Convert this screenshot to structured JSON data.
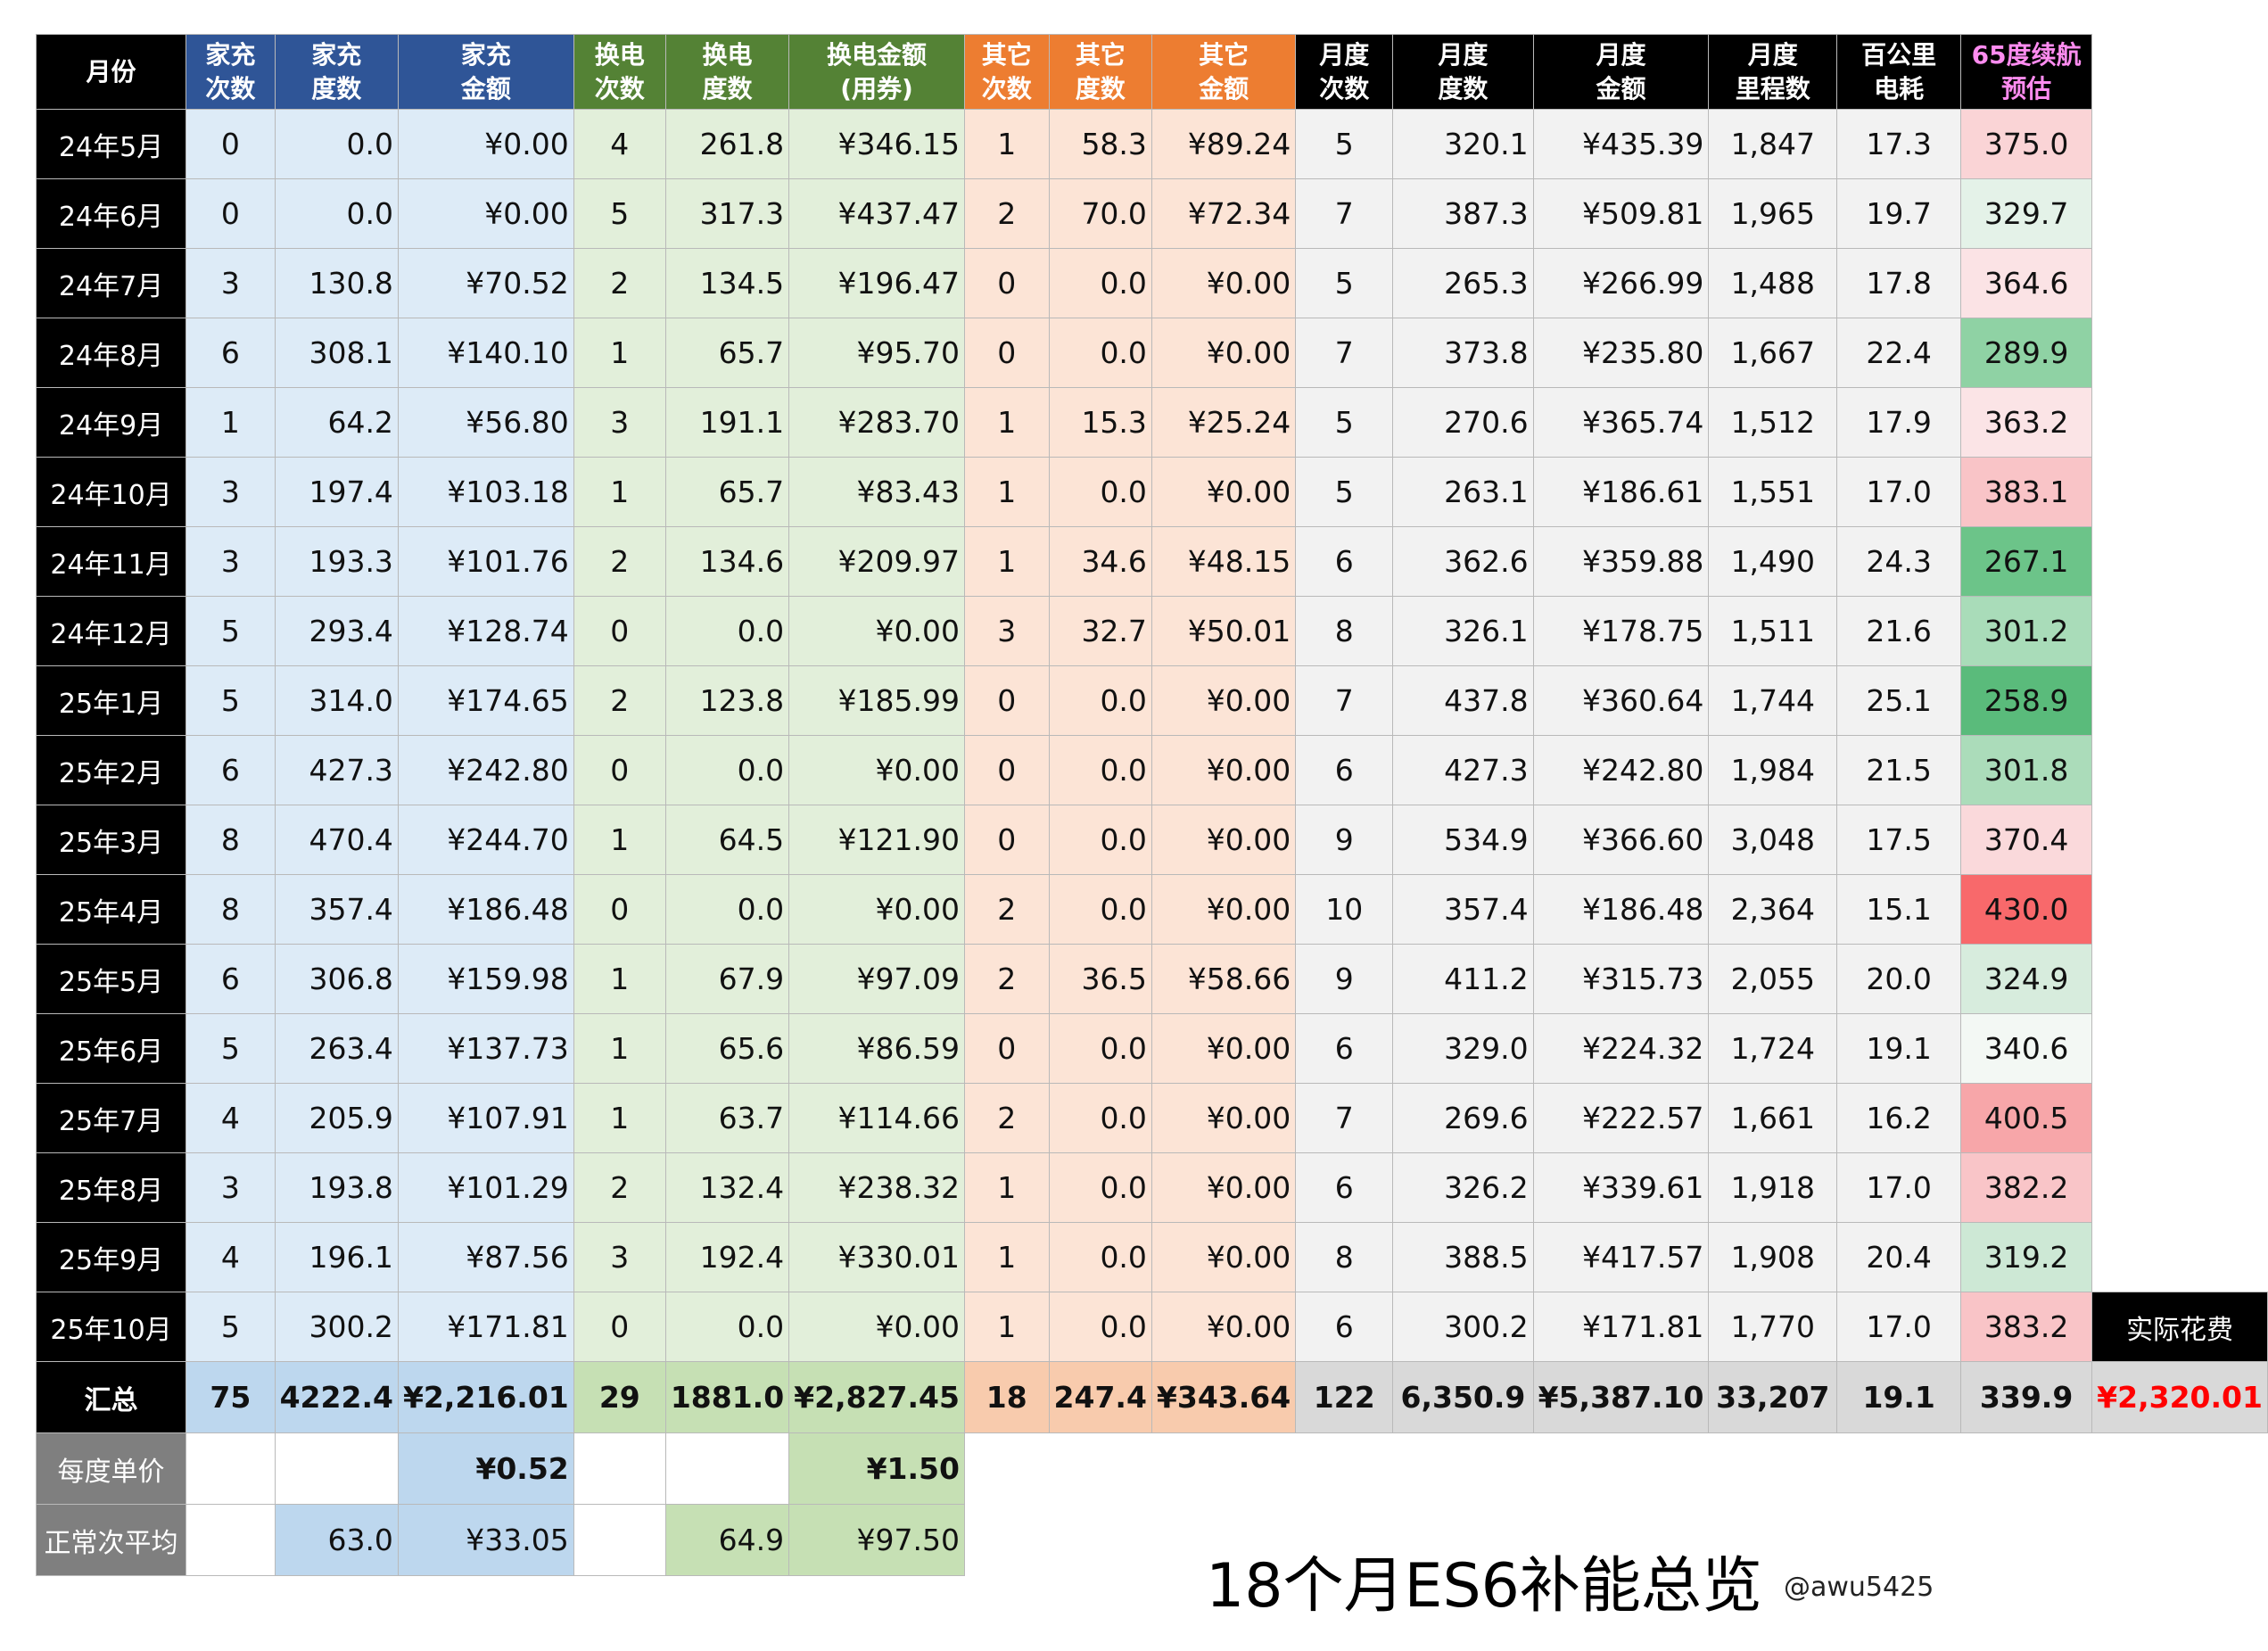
{
  "headers": {
    "month": "月份",
    "home_count": [
      "家充",
      "次数"
    ],
    "home_kwh": [
      "家充",
      "度数"
    ],
    "home_amt": [
      "家充",
      "金额"
    ],
    "swap_count": [
      "换电",
      "次数"
    ],
    "swap_kwh": [
      "换电",
      "度数"
    ],
    "swap_amt": [
      "换电金额",
      "(用券)"
    ],
    "other_count": [
      "其它",
      "次数"
    ],
    "other_kwh": [
      "其它",
      "度数"
    ],
    "other_amt": [
      "其它",
      "金额"
    ],
    "m_count": [
      "月度",
      "次数"
    ],
    "m_kwh": [
      "月度",
      "度数"
    ],
    "m_amt": [
      "月度",
      "金额"
    ],
    "m_km": [
      "月度",
      "里程数"
    ],
    "per100": [
      "百公里",
      "电耗"
    ],
    "range": [
      "65度续航",
      "预估"
    ]
  },
  "rows": [
    {
      "m": "24年5月",
      "hc": "0",
      "hk": "0.0",
      "ha": "¥0.00",
      "sc": "4",
      "sk": "261.8",
      "sa": "¥346.15",
      "oc": "1",
      "ok": "58.3",
      "oa": "¥89.24",
      "mc": "5",
      "mk": "320.1",
      "ma": "¥435.39",
      "km": "1,847",
      "p": "17.3",
      "r": "375.0",
      "rc": "#fad4d6"
    },
    {
      "m": "24年6月",
      "hc": "0",
      "hk": "0.0",
      "ha": "¥0.00",
      "sc": "5",
      "sk": "317.3",
      "sa": "¥437.47",
      "oc": "2",
      "ok": "70.0",
      "oa": "¥72.34",
      "mc": "7",
      "mk": "387.3",
      "ma": "¥509.81",
      "km": "1,965",
      "p": "19.7",
      "r": "329.7",
      "rc": "#e4f2e8"
    },
    {
      "m": "24年7月",
      "hc": "3",
      "hk": "130.8",
      "ha": "¥70.52",
      "sc": "2",
      "sk": "134.5",
      "sa": "¥196.47",
      "oc": "0",
      "ok": "0.0",
      "oa": "¥0.00",
      "mc": "5",
      "mk": "265.3",
      "ma": "¥266.99",
      "km": "1,488",
      "p": "17.8",
      "r": "364.6",
      "rc": "#fbe3e5"
    },
    {
      "m": "24年8月",
      "hc": "6",
      "hk": "308.1",
      "ha": "¥140.10",
      "sc": "1",
      "sk": "65.7",
      "sa": "¥95.70",
      "oc": "0",
      "ok": "0.0",
      "oa": "¥0.00",
      "mc": "7",
      "mk": "373.8",
      "ma": "¥235.80",
      "km": "1,667",
      "p": "22.4",
      "r": "289.9",
      "rc": "#8fd2a4"
    },
    {
      "m": "24年9月",
      "hc": "1",
      "hk": "64.2",
      "ha": "¥56.80",
      "sc": "3",
      "sk": "191.1",
      "sa": "¥283.70",
      "oc": "1",
      "ok": "15.3",
      "oa": "¥25.24",
      "mc": "5",
      "mk": "270.6",
      "ma": "¥365.74",
      "km": "1,512",
      "p": "17.9",
      "r": "363.2",
      "rc": "#fbe4e6"
    },
    {
      "m": "24年10月",
      "hc": "3",
      "hk": "197.4",
      "ha": "¥103.18",
      "sc": "1",
      "sk": "65.7",
      "sa": "¥83.43",
      "oc": "1",
      "ok": "0.0",
      "oa": "¥0.00",
      "mc": "5",
      "mk": "263.1",
      "ma": "¥186.61",
      "km": "1,551",
      "p": "17.0",
      "r": "383.1",
      "rc": "#f9c4c7"
    },
    {
      "m": "24年11月",
      "hc": "3",
      "hk": "193.3",
      "ha": "¥101.76",
      "sc": "2",
      "sk": "134.6",
      "sa": "¥209.97",
      "oc": "1",
      "ok": "34.6",
      "oa": "¥48.15",
      "mc": "6",
      "mk": "362.6",
      "ma": "¥359.88",
      "km": "1,490",
      "p": "24.3",
      "r": "267.1",
      "rc": "#6cc489"
    },
    {
      "m": "24年12月",
      "hc": "5",
      "hk": "293.4",
      "ha": "¥128.74",
      "sc": "0",
      "sk": "0.0",
      "sa": "¥0.00",
      "oc": "3",
      "ok": "32.7",
      "oa": "¥50.01",
      "mc": "8",
      "mk": "326.1",
      "ma": "¥178.75",
      "km": "1,511",
      "p": "21.6",
      "r": "301.2",
      "rc": "#a9dcb9"
    },
    {
      "m": "25年1月",
      "hc": "5",
      "hk": "314.0",
      "ha": "¥174.65",
      "sc": "2",
      "sk": "123.8",
      "sa": "¥185.99",
      "oc": "0",
      "ok": "0.0",
      "oa": "¥0.00",
      "mc": "7",
      "mk": "437.8",
      "ma": "¥360.64",
      "km": "1,744",
      "p": "25.1",
      "r": "258.9",
      "rc": "#5abb7b"
    },
    {
      "m": "25年2月",
      "hc": "6",
      "hk": "427.3",
      "ha": "¥242.80",
      "sc": "0",
      "sk": "0.0",
      "sa": "¥0.00",
      "oc": "0",
      "ok": "0.0",
      "oa": "¥0.00",
      "mc": "6",
      "mk": "427.3",
      "ma": "¥242.80",
      "km": "1,984",
      "p": "21.5",
      "r": "301.8",
      "rc": "#abdcba"
    },
    {
      "m": "25年3月",
      "hc": "8",
      "hk": "470.4",
      "ha": "¥244.70",
      "sc": "1",
      "sk": "64.5",
      "sa": "¥121.90",
      "oc": "0",
      "ok": "0.0",
      "oa": "¥0.00",
      "mc": "9",
      "mk": "534.9",
      "ma": "¥366.60",
      "km": "3,048",
      "p": "17.5",
      "r": "370.4",
      "rc": "#fad9db"
    },
    {
      "m": "25年4月",
      "hc": "8",
      "hk": "357.4",
      "ha": "¥186.48",
      "sc": "0",
      "sk": "0.0",
      "sa": "¥0.00",
      "oc": "2",
      "ok": "0.0",
      "oa": "¥0.00",
      "mc": "10",
      "mk": "357.4",
      "ma": "¥186.48",
      "km": "2,364",
      "p": "15.1",
      "r": "430.0",
      "rc": "#f8696b"
    },
    {
      "m": "25年5月",
      "hc": "6",
      "hk": "306.8",
      "ha": "¥159.98",
      "sc": "1",
      "sk": "67.9",
      "sa": "¥97.09",
      "oc": "2",
      "ok": "36.5",
      "oa": "¥58.66",
      "mc": "9",
      "mk": "411.2",
      "ma": "¥315.73",
      "km": "2,055",
      "p": "20.0",
      "r": "324.9",
      "rc": "#d7ecdd"
    },
    {
      "m": "25年6月",
      "hc": "5",
      "hk": "263.4",
      "ha": "¥137.73",
      "sc": "1",
      "sk": "65.6",
      "sa": "¥86.59",
      "oc": "0",
      "ok": "0.0",
      "oa": "¥0.00",
      "mc": "6",
      "mk": "329.0",
      "ma": "¥224.32",
      "km": "1,724",
      "p": "19.1",
      "r": "340.6",
      "rc": "#f3f8f4"
    },
    {
      "m": "25年7月",
      "hc": "4",
      "hk": "205.9",
      "ha": "¥107.91",
      "sc": "1",
      "sk": "63.7",
      "sa": "¥114.66",
      "oc": "2",
      "ok": "0.0",
      "oa": "¥0.00",
      "mc": "7",
      "mk": "269.6",
      "ma": "¥222.57",
      "km": "1,661",
      "p": "16.2",
      "r": "400.5",
      "rc": "#f7a6a9"
    },
    {
      "m": "25年8月",
      "hc": "3",
      "hk": "193.8",
      "ha": "¥101.29",
      "sc": "2",
      "sk": "132.4",
      "sa": "¥238.32",
      "oc": "1",
      "ok": "0.0",
      "oa": "¥0.00",
      "mc": "6",
      "mk": "326.2",
      "ma": "¥339.61",
      "km": "1,918",
      "p": "17.0",
      "r": "382.2",
      "rc": "#f9c5c8"
    },
    {
      "m": "25年9月",
      "hc": "4",
      "hk": "196.1",
      "ha": "¥87.56",
      "sc": "3",
      "sk": "192.4",
      "sa": "¥330.01",
      "oc": "1",
      "ok": "0.0",
      "oa": "¥0.00",
      "mc": "8",
      "mk": "388.5",
      "ma": "¥417.57",
      "km": "1,908",
      "p": "20.4",
      "r": "319.2",
      "rc": "#cde8d5"
    },
    {
      "m": "25年10月",
      "hc": "5",
      "hk": "300.2",
      "ha": "¥171.81",
      "sc": "0",
      "sk": "0.0",
      "sa": "¥0.00",
      "oc": "1",
      "ok": "0.0",
      "oa": "¥0.00",
      "mc": "6",
      "mk": "300.2",
      "ma": "¥171.81",
      "km": "1,770",
      "p": "17.0",
      "r": "383.2",
      "rc": "#f9c4c7"
    }
  ],
  "total": {
    "label": "汇总",
    "hc": "75",
    "hk": "4222.4",
    "ha": "¥2,216.01",
    "sc": "29",
    "sk": "1881.0",
    "sa": "¥2,827.45",
    "oc": "18",
    "ok": "247.4",
    "oa": "¥343.64",
    "mc": "122",
    "mk": "6,350.9",
    "ma": "¥5,387.10",
    "km": "33,207",
    "p": "19.1",
    "r": "339.9"
  },
  "actual": {
    "label": "实际花费",
    "value": "¥2,320.01"
  },
  "unit_price": {
    "label": "每度单价",
    "home": "¥0.52",
    "swap": "¥1.50"
  },
  "avg": {
    "label": "正常次平均",
    "home_kwh": "63.0",
    "home_amt": "¥33.05",
    "swap_kwh": "64.9",
    "swap_amt": "¥97.50"
  },
  "title": "18个月ES6补能总览",
  "watermark": "@awu5425",
  "colors": {
    "blue_header": "#2f5597",
    "green_header": "#548235",
    "orange_header": "#ed7d31",
    "range_header_text": "#ff8cf0",
    "actual_cost": "#ff0000"
  }
}
